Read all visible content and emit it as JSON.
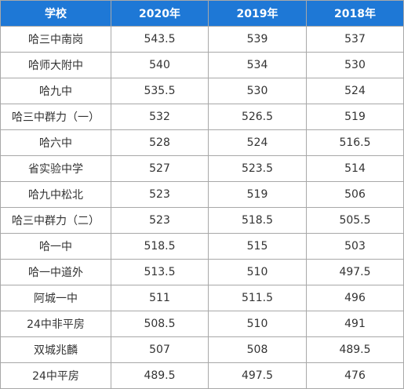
{
  "table": {
    "headers": [
      "学校",
      "2020年",
      "2019年",
      "2018年"
    ],
    "rows": [
      [
        "哈三中南岗",
        "543.5",
        "539",
        "537"
      ],
      [
        "哈师大附中",
        "540",
        "534",
        "530"
      ],
      [
        "哈九中",
        "535.5",
        "530",
        "524"
      ],
      [
        "哈三中群力（一）",
        "532",
        "526.5",
        "519"
      ],
      [
        "哈六中",
        "528",
        "524",
        "516.5"
      ],
      [
        "省实验中学",
        "527",
        "523.5",
        "514"
      ],
      [
        "哈九中松北",
        "523",
        "519",
        "506"
      ],
      [
        "哈三中群力（二）",
        "523",
        "518.5",
        "505.5"
      ],
      [
        "哈一中",
        "518.5",
        "515",
        "503"
      ],
      [
        "哈一中道外",
        "513.5",
        "510",
        "497.5"
      ],
      [
        "阿城一中",
        "511",
        "511.5",
        "496"
      ],
      [
        "24中非平房",
        "508.5",
        "510",
        "491"
      ],
      [
        "双城兆麟",
        "507",
        "508",
        "489.5"
      ],
      [
        "24中平房",
        "489.5",
        "497.5",
        "476"
      ]
    ]
  },
  "colors": {
    "header_background": "#1e78d6",
    "header_text": "#ffffff",
    "border": "#a8a8a8",
    "cell_text": "#333333"
  }
}
